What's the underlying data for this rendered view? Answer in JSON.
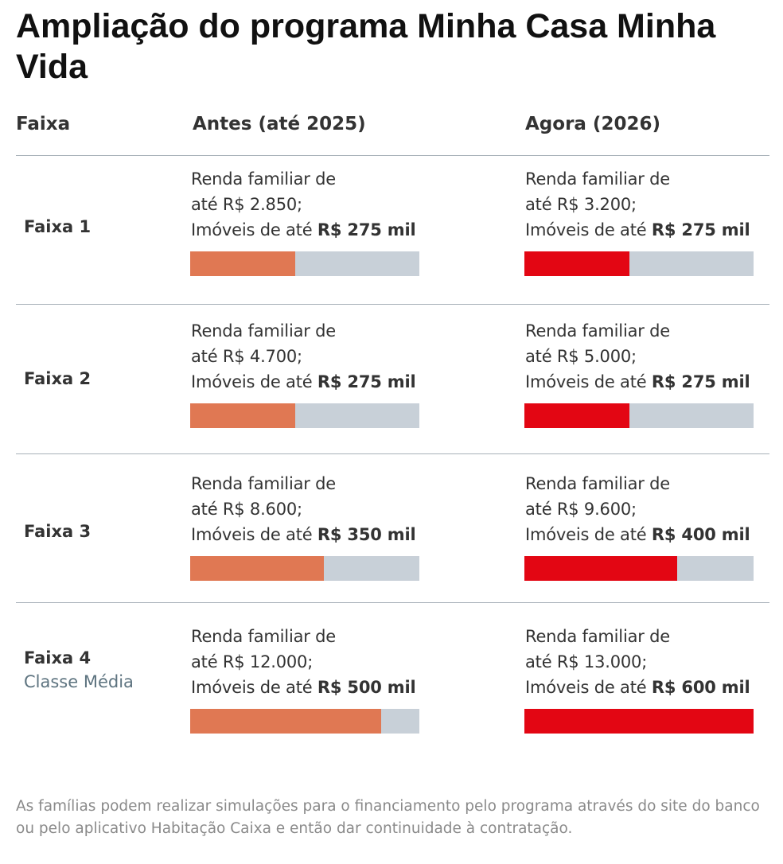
{
  "title": "Ampliação do programa Minha Casa Minha Vida",
  "headers": {
    "faixa": "Faixa",
    "antes": "Antes (até 2025)",
    "agora": "Agora (2026)"
  },
  "colors": {
    "antes": "#e07853",
    "agora": "#e30613",
    "track": "#c8d0d8"
  },
  "chart_data": {
    "type": "bar",
    "unit": "R$ mil",
    "xlim": [
      0,
      600
    ],
    "categories": [
      "Faixa 1",
      "Faixa 2",
      "Faixa 3",
      "Faixa 4"
    ],
    "series": [
      {
        "name": "Antes (até 2025)",
        "values": [
          275,
          275,
          350,
          500
        ]
      },
      {
        "name": "Agora (2026)",
        "values": [
          275,
          275,
          400,
          600
        ]
      }
    ]
  },
  "rows": [
    {
      "label": "Faixa 1",
      "sub": "",
      "antes": {
        "l1": "Renda familiar de",
        "l2": "até R$ 2.850;",
        "l3": "Imóveis de até ",
        "v": "R$ 275 mil",
        "n": 275
      },
      "agora": {
        "l1": "Renda familiar de",
        "l2": "até R$ 3.200;",
        "l3": "Imóveis de até ",
        "v": "R$ 275 mil",
        "n": 275
      }
    },
    {
      "label": "Faixa 2",
      "sub": "",
      "antes": {
        "l1": "Renda familiar de",
        "l2": "até R$ 4.700;",
        "l3": "Imóveis de até ",
        "v": "R$ 275 mil",
        "n": 275
      },
      "agora": {
        "l1": "Renda familiar de",
        "l2": "até R$ 5.000;",
        "l3": "Imóveis de até ",
        "v": "R$ 275 mil",
        "n": 275
      }
    },
    {
      "label": "Faixa 3",
      "sub": "",
      "antes": {
        "l1": "Renda familiar de",
        "l2": "até R$ 8.600;",
        "l3": "Imóveis de até ",
        "v": "R$ 350 mil",
        "n": 350
      },
      "agora": {
        "l1": "Renda familiar de",
        "l2": "até R$ 9.600;",
        "l3": "Imóveis de até ",
        "v": "R$ 400 mil",
        "n": 400
      }
    },
    {
      "label": "Faixa 4",
      "sub": "Classe Média",
      "antes": {
        "l1": "Renda familiar de",
        "l2": "até R$ 12.000;",
        "l3": "Imóveis de até ",
        "v": "R$ 500 mil",
        "n": 500
      },
      "agora": {
        "l1": "Renda familiar de",
        "l2": "até R$ 13.000;",
        "l3": "Imóveis de até ",
        "v": "R$ 600 mil",
        "n": 600
      }
    }
  ],
  "footer": "As famílias podem realizar simulações para o financiamento pelo programa através do site do banco ou pelo aplicativo Habitação Caixa e então dar continuidade à contratação."
}
